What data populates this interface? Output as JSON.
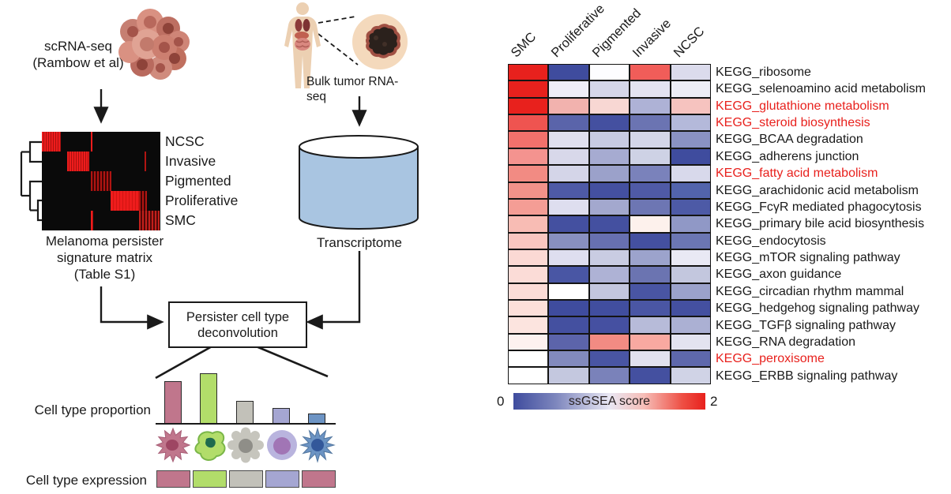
{
  "left_panel": {
    "scrna_label": [
      "scRNA-seq",
      "(Rambow et al)"
    ],
    "bulk_label": "Bulk tumor RNA-seq",
    "matrix_row_labels": [
      "NCSC",
      "Invasive",
      "Pigmented",
      "Proliferative",
      "SMC"
    ],
    "matrix_caption": [
      "Melanoma persister",
      "signature matrix",
      "(Table S1)"
    ],
    "transcriptome_label": "Transcriptome",
    "deconvolution_label": [
      "Persister cell type",
      "deconvolution"
    ],
    "proportion_label": "Cell type proportion",
    "expression_label": "Cell type expression",
    "cell_icons": [
      "pink-spiky-cell",
      "green-amoeboid-cell",
      "gray-round-cell",
      "purple-round-cell",
      "blue-dendritic-cell"
    ]
  },
  "colors": {
    "bar_colors": [
      "#c0768c",
      "#b2dd6a",
      "#c2c1b9",
      "#a5a6d2",
      "#6d94c4"
    ],
    "expression_colors": [
      "#c0768c",
      "#b2dd6a",
      "#c2c1b9",
      "#a5a6d2",
      "#c0768c"
    ],
    "red_label": "#e8211d",
    "scale_low": "#3f4c9e",
    "scale_mid": "#ffffff",
    "scale_high": "#e8211d"
  },
  "chart_data": [
    {
      "type": "bar",
      "title": "Cell type proportion",
      "categories": [
        "pink-spiky-cell",
        "green-amoeboid-cell",
        "gray-round-cell",
        "purple-round-cell",
        "blue-dendritic-cell"
      ],
      "values": [
        0.84,
        1.0,
        0.45,
        0.31,
        0.2
      ],
      "xlabel": "",
      "ylabel": "",
      "ylim": [
        0,
        1
      ]
    },
    {
      "type": "heatmap",
      "title": "ssGSEA score",
      "columns": [
        "SMC",
        "Proliferative",
        "Pigmented",
        "Invasive",
        "NCSC"
      ],
      "legend": {
        "min": "0",
        "max": "2",
        "title": "ssGSEA score"
      },
      "rows": [
        {
          "label": "KEGG_ribosome",
          "red": false,
          "scores": [
            2.0,
            0.1,
            1.0,
            1.6,
            0.85
          ],
          "cell_colors": [
            "#e8211d",
            "#3f4c9e",
            "#fdfdff",
            "#f15d59",
            "#dbdbec"
          ]
        },
        {
          "label": "KEGG_selenoamino acid metabolism",
          "red": false,
          "scores": [
            2.0,
            0.95,
            0.8,
            0.9,
            0.93
          ],
          "cell_colors": [
            "#e8211d",
            "#efedf7",
            "#d5d6e9",
            "#e3e3f1",
            "#ededf6"
          ]
        },
        {
          "label": "KEGG_glutathione metabolism",
          "red": true,
          "scores": [
            2.0,
            1.35,
            1.15,
            0.6,
            1.25
          ],
          "cell_colors": [
            "#e8211d",
            "#f2b2ae",
            "#f8d7d3",
            "#aeb2d6",
            "#f6c3bf"
          ]
        },
        {
          "label": "KEGG_steroid biosynthesis",
          "red": true,
          "scores": [
            1.65,
            0.35,
            0.1,
            0.45,
            0.65
          ],
          "cell_colors": [
            "#ef5450",
            "#5a64aa",
            "#4450a0",
            "#6b74b2",
            "#b4b9da"
          ]
        },
        {
          "label": "KEGG_BCAA degradation",
          "red": false,
          "scores": [
            1.55,
            0.9,
            0.75,
            0.82,
            0.5
          ],
          "cell_colors": [
            "#f1716c",
            "#dfdfee",
            "#c7cbe2",
            "#d3d6e8",
            "#8a92c3"
          ]
        },
        {
          "label": "KEGG_adherens junction",
          "red": false,
          "scores": [
            1.45,
            0.82,
            0.58,
            0.78,
            0.1
          ],
          "cell_colors": [
            "#f4938f",
            "#d8d8ea",
            "#a6abd1",
            "#ced2e5",
            "#3f4c9e"
          ]
        },
        {
          "label": "KEGG_fatty acid metabolism",
          "red": true,
          "scores": [
            1.48,
            0.8,
            0.55,
            0.45,
            0.82
          ],
          "cell_colors": [
            "#f28b83",
            "#d4d5e8",
            "#9ba1ca",
            "#7a82bb",
            "#d8d9eb"
          ]
        },
        {
          "label": "KEGG_arachidonic acid metabolism",
          "red": false,
          "scores": [
            1.45,
            0.15,
            0.1,
            0.17,
            0.18
          ],
          "cell_colors": [
            "#f2928a",
            "#4e5aa6",
            "#4450a0",
            "#4f5aa6",
            "#5264ac"
          ]
        },
        {
          "label": "KEGG_FcγR mediated phagocytosis",
          "red": false,
          "scores": [
            1.4,
            0.93,
            0.55,
            0.35,
            0.13
          ],
          "cell_colors": [
            "#f49d95",
            "#dedeef",
            "#a3a8ce",
            "#6d76b3",
            "#4d5aa6"
          ]
        },
        {
          "label": "KEGG_primary bile acid biosynthesis",
          "red": false,
          "scores": [
            1.3,
            0.1,
            0.1,
            1.02,
            0.5
          ],
          "cell_colors": [
            "#f8bcb4",
            "#4450a0",
            "#4450a0",
            "#fdf1ec",
            "#9098c6"
          ]
        },
        {
          "label": "KEGG_endocytosis",
          "red": false,
          "scores": [
            1.25,
            0.5,
            0.35,
            0.1,
            0.37
          ],
          "cell_colors": [
            "#f9c6c0",
            "#8890c0",
            "#6770b0",
            "#4450a0",
            "#6b76b3"
          ]
        },
        {
          "label": "KEGG_mTOR signaling pathway",
          "red": false,
          "scores": [
            1.15,
            0.93,
            0.78,
            0.55,
            0.95
          ],
          "cell_colors": [
            "#fbd9d4",
            "#dedeef",
            "#c9cce2",
            "#9ca3cc",
            "#e9e9f4"
          ]
        },
        {
          "label": "KEGG_axon guidance",
          "red": false,
          "scores": [
            1.15,
            0.16,
            0.62,
            0.33,
            0.72
          ],
          "cell_colors": [
            "#fbdcd7",
            "#4956a4",
            "#aeb2d5",
            "#6b74b1",
            "#c3c7de"
          ]
        },
        {
          "label": "KEGG_circadian rhythm mammal",
          "red": false,
          "scores": [
            1.15,
            1.0,
            0.72,
            0.14,
            0.55
          ],
          "cell_colors": [
            "#fbdcd7",
            "#ffffff",
            "#c3c6de",
            "#4955a3",
            "#9ba2cb"
          ]
        },
        {
          "label": "KEGG_hedgehog signaling pathway",
          "red": false,
          "scores": [
            1.12,
            0.1,
            0.1,
            0.14,
            0.1
          ],
          "cell_colors": [
            "#fcdfda",
            "#3f4c9e",
            "#414e9f",
            "#4a56a4",
            "#4450a0"
          ]
        },
        {
          "label": "KEGG_TGFβ signaling pathway",
          "red": false,
          "scores": [
            1.1,
            0.1,
            0.1,
            0.65,
            0.6
          ],
          "cell_colors": [
            "#fce4df",
            "#4450a0",
            "#4550a1",
            "#b7bbd9",
            "#abb0d3"
          ]
        },
        {
          "label": "KEGG_RNA degradation",
          "red": false,
          "scores": [
            1.02,
            0.3,
            1.5,
            1.35,
            0.9
          ],
          "cell_colors": [
            "#fdf1ef",
            "#5c64aa",
            "#f28b83",
            "#f8a9a1",
            "#e3e3f0"
          ]
        },
        {
          "label": "KEGG_peroxisome",
          "red": true,
          "scores": [
            1.0,
            0.45,
            0.14,
            0.88,
            0.33
          ],
          "cell_colors": [
            "#ffffff",
            "#828abd",
            "#4955a3",
            "#e1e1ee",
            "#5e68ac"
          ]
        },
        {
          "label": "KEGG_ERBB signaling pathway",
          "red": false,
          "scores": [
            1.0,
            0.72,
            0.4,
            0.1,
            0.8
          ],
          "cell_colors": [
            "#ffffff",
            "#c4c8df",
            "#7a82ba",
            "#4450a0",
            "#d0d3e6"
          ]
        }
      ]
    }
  ]
}
